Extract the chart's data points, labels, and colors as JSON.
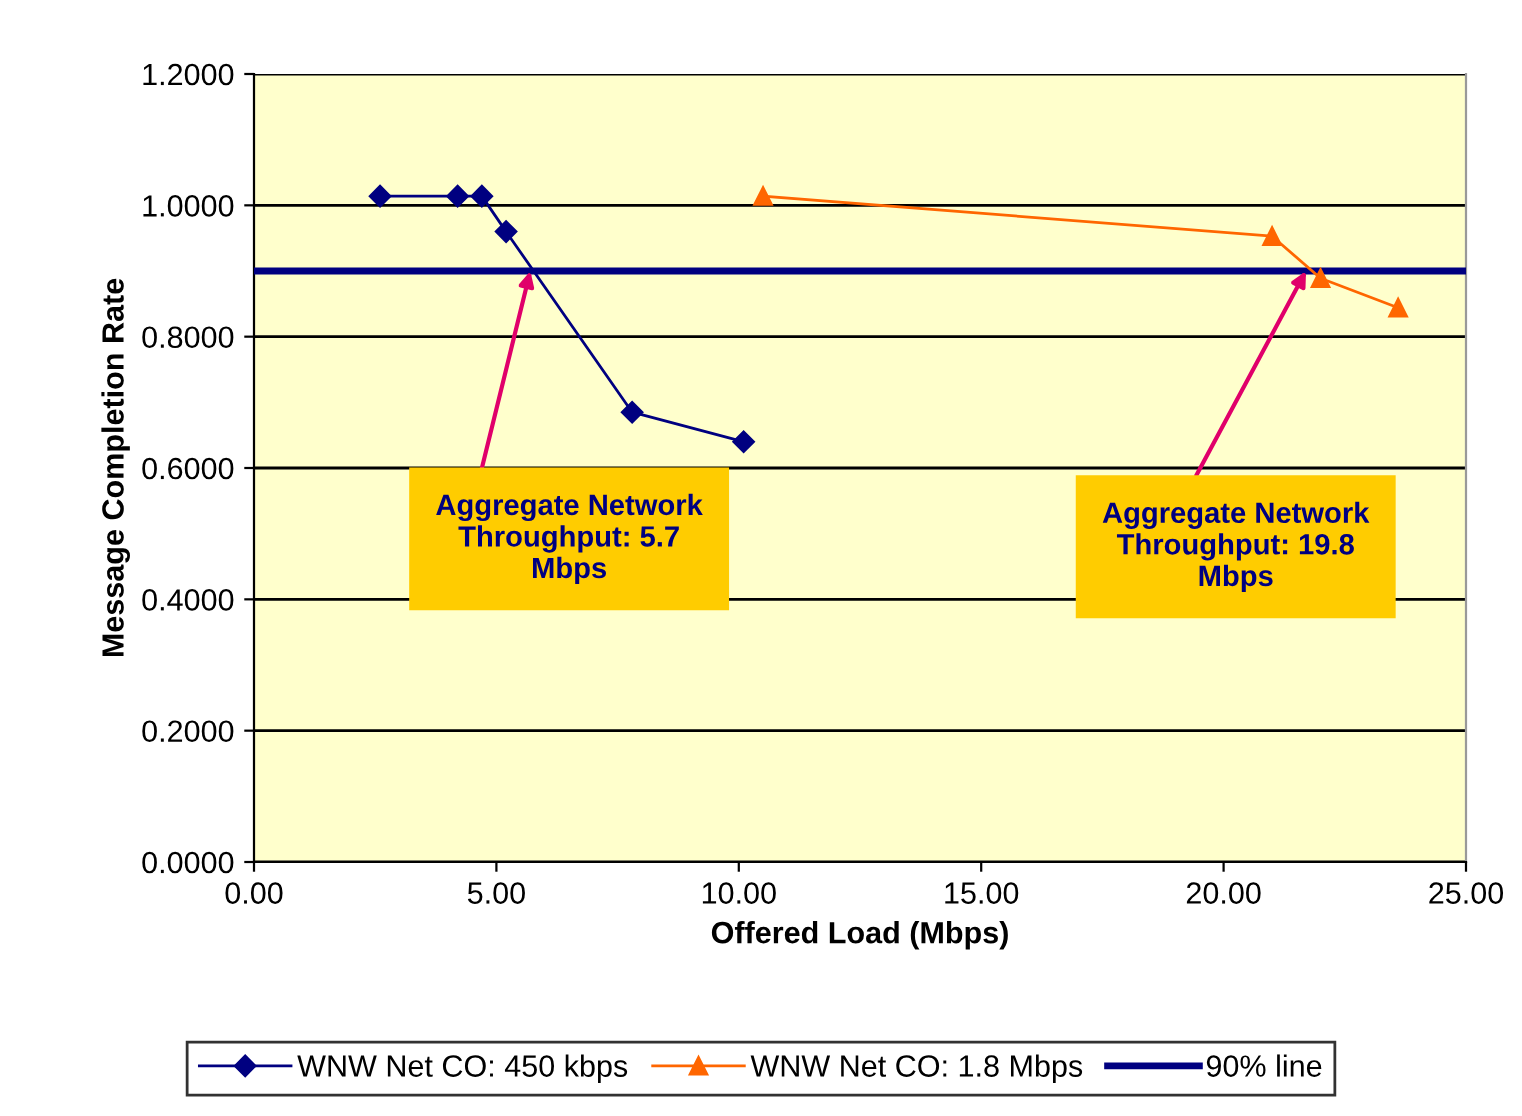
{
  "chart_data": {
    "type": "line",
    "xlabel": "Offered Load (Mbps)",
    "ylabel": "Message Completion Rate",
    "series": [
      {
        "name": "WNW Net CO: 450 kbps",
        "color": "#000080",
        "marker": "diamond",
        "x": [
          2.6,
          4.2,
          4.7,
          5.2,
          7.8,
          10.1
        ],
        "values": [
          1.014,
          1.014,
          1.014,
          0.96,
          0.685,
          0.64
        ]
      },
      {
        "name": "WNW Net CO: 1.8 Mbps",
        "color": "#ff6600",
        "marker": "triangle",
        "x": [
          10.5,
          21.0,
          22.0,
          23.6
        ],
        "values": [
          1.014,
          0.953,
          0.889,
          0.844
        ]
      }
    ],
    "ref_lines": [
      {
        "axis": "y",
        "value": 0.9,
        "label": "90% line",
        "color": "#000080"
      }
    ],
    "annotations": [
      {
        "text": "Aggregate Network Throughput: 5.7 Mbps",
        "x": 5.7,
        "y": 0.9
      },
      {
        "text": "Aggregate Network Throughput: 19.8 Mbps",
        "x": 21.7,
        "y": 0.9
      }
    ],
    "xlim": [
      0,
      25
    ],
    "ylim": [
      0,
      1.2
    ],
    "xticks": [
      {
        "value": 0,
        "label": "0.00"
      },
      {
        "value": 5,
        "label": "5.00"
      },
      {
        "value": 10,
        "label": "10.00"
      },
      {
        "value": 15,
        "label": "15.00"
      },
      {
        "value": 20,
        "label": "20.00"
      },
      {
        "value": 25,
        "label": "25.00"
      }
    ],
    "yticks": [
      {
        "value": 0,
        "label": "0.0000"
      },
      {
        "value": 0.2,
        "label": "0.2000"
      },
      {
        "value": 0.4,
        "label": "0.4000"
      },
      {
        "value": 0.6,
        "label": "0.6000"
      },
      {
        "value": 0.8,
        "label": "0.8000"
      },
      {
        "value": 1.0,
        "label": "1.0000"
      },
      {
        "value": 1.2,
        "label": "1.2000"
      }
    ],
    "grid": "y",
    "legend": "bottom"
  }
}
